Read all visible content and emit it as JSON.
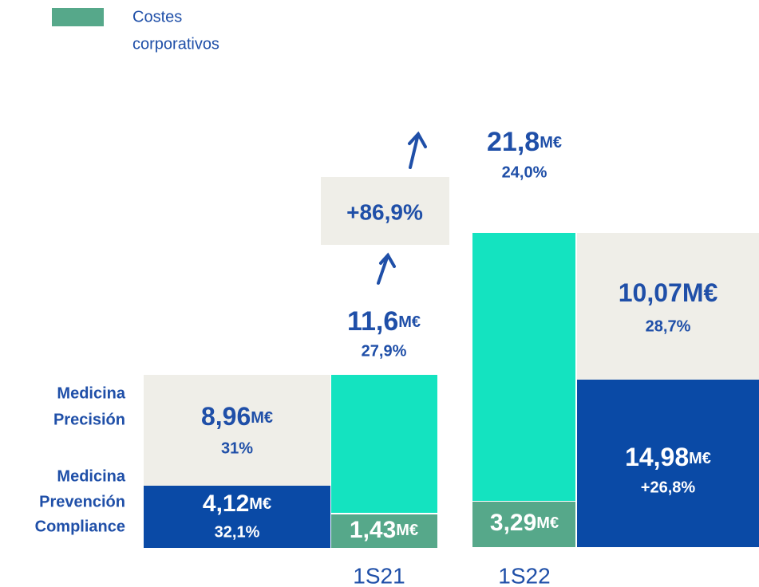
{
  "legend": {
    "label_lines": [
      "Costes",
      "corporativos"
    ]
  },
  "segment_labels": {
    "precision": [
      "Medicina",
      "Precisión"
    ],
    "prevention": [
      "Medicina",
      "Prevención",
      "Compliance"
    ]
  },
  "periods": [
    "1S21",
    "1S22"
  ],
  "s21": {
    "precision": {
      "value": "8,96",
      "unit": "M€",
      "share": "31%"
    },
    "prevention": {
      "value": "4,12",
      "unit": "M€",
      "share": "32,1%"
    },
    "corporate": {
      "value": "1,43",
      "unit": "M€"
    },
    "total": {
      "value": "11,6",
      "unit": "M€",
      "share": "27,9%"
    }
  },
  "growth": "+86,9%",
  "s22": {
    "total": {
      "value": "21,8",
      "unit": "M€",
      "share": "24,0%"
    },
    "corporate": {
      "value": "3,29",
      "unit": "M€"
    },
    "precision": {
      "value": "10,07",
      "unit": "M€",
      "share": "28,7%"
    },
    "prevention": {
      "value": "14,98",
      "unit": "M€",
      "share": "+26,8%"
    }
  }
}
